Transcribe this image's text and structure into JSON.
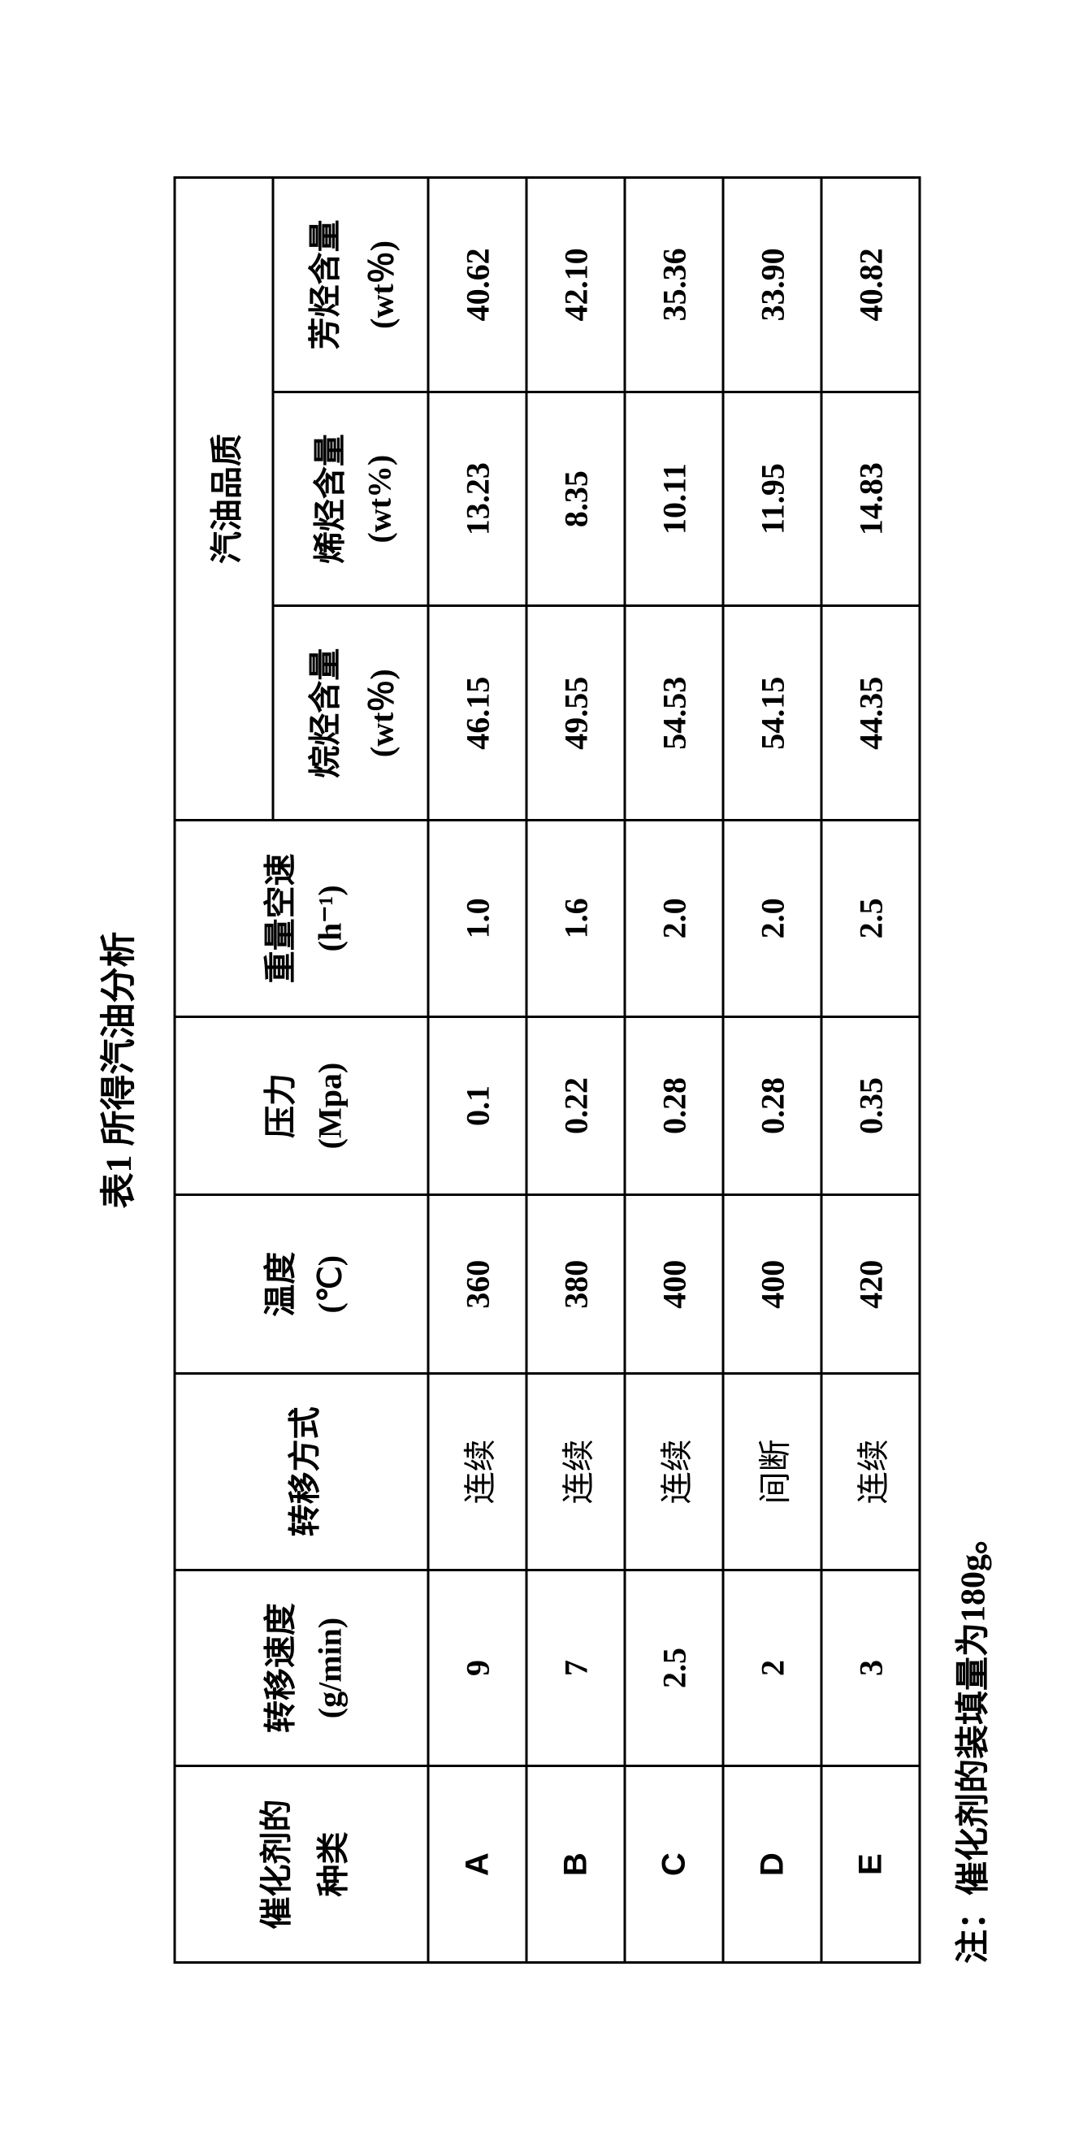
{
  "title": "表1 所得汽油分析",
  "footnote": "注：催化剂的装填量为180g。",
  "columns": {
    "catalyst_type": {
      "line1": "催化剂的",
      "line2": "种类"
    },
    "transfer_speed": {
      "line1": "转移速度",
      "line2": "(g/min)"
    },
    "transfer_mode": {
      "line1": "转移方式",
      "line2": ""
    },
    "temperature": {
      "line1": "温度",
      "line2": "(℃)"
    },
    "pressure": {
      "line1": "压力",
      "line2": "(Mpa)"
    },
    "whsv": {
      "line1": "重量空速",
      "line2": "(h⁻¹)"
    },
    "gasoline_quality": "汽油品质",
    "alkane": {
      "line1": "烷烃含量",
      "line2": "(wt％)"
    },
    "olefin": {
      "line1": "烯烃含量",
      "line2": "(wt%)"
    },
    "aromatic": {
      "line1": "芳烃含量",
      "line2": "(wt％)"
    }
  },
  "rows": [
    {
      "catalyst": "A",
      "speed": "9",
      "mode": "连续",
      "temp": "360",
      "press": "0.1",
      "whsv": "1.0",
      "alkane": "46.15",
      "olefin": "13.23",
      "aromatic": "40.62"
    },
    {
      "catalyst": "B",
      "speed": "7",
      "mode": "连续",
      "temp": "380",
      "press": "0.22",
      "whsv": "1.6",
      "alkane": "49.55",
      "olefin": "8.35",
      "aromatic": "42.10"
    },
    {
      "catalyst": "C",
      "speed": "2.5",
      "mode": "连续",
      "temp": "400",
      "press": "0.28",
      "whsv": "2.0",
      "alkane": "54.53",
      "olefin": "10.11",
      "aromatic": "35.36"
    },
    {
      "catalyst": "D",
      "speed": "2",
      "mode": "间断",
      "temp": "400",
      "press": "0.28",
      "whsv": "2.0",
      "alkane": "54.15",
      "olefin": "11.95",
      "aromatic": "33.90"
    },
    {
      "catalyst": "E",
      "speed": "3",
      "mode": "连续",
      "temp": "420",
      "press": "0.35",
      "whsv": "2.5",
      "alkane": "44.35",
      "olefin": "14.83",
      "aromatic": "40.82"
    }
  ],
  "style": {
    "background_color": "#ffffff",
    "text_color": "#000000",
    "border_color": "#000000",
    "border_width": 3,
    "title_fontsize": 44,
    "cell_fontsize": 40,
    "footnote_fontsize": 42,
    "col_widths_pct": [
      11,
      11,
      11,
      10,
      10,
      11,
      12,
      12,
      12
    ]
  }
}
